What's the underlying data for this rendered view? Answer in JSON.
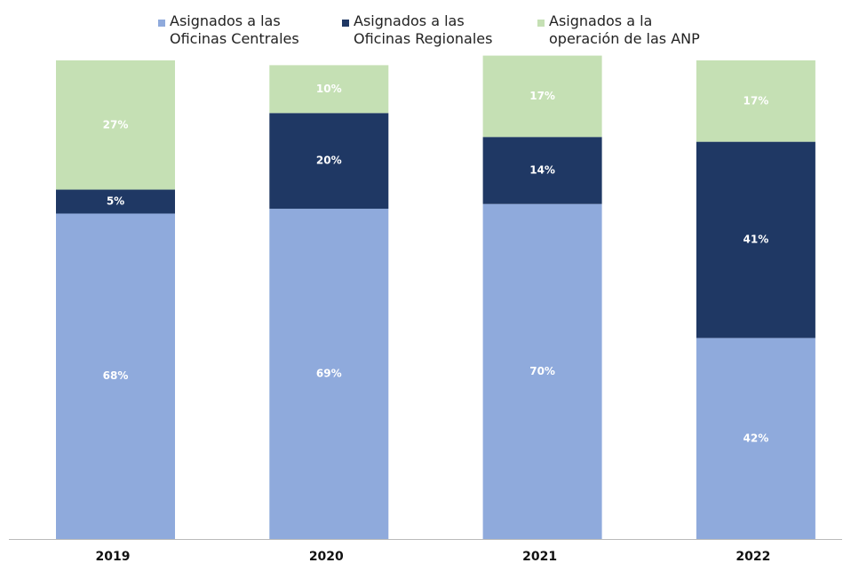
{
  "chart_data": {
    "type": "stacked_bar",
    "categories": [
      "2019",
      "2020",
      "2021",
      "2022"
    ],
    "ylim": [
      0,
      100
    ],
    "series": [
      {
        "name": "Asignados a las Oficinas Centrales",
        "color": "#8faadc",
        "values": [
          68,
          69,
          70,
          42
        ],
        "value_labels": [
          "68%",
          "69%",
          "70%",
          "42%"
        ]
      },
      {
        "name": "Asignados a las Oficinas Regionales",
        "color": "#1f3864",
        "values": [
          5,
          20,
          14,
          41
        ],
        "value_labels": [
          "5%",
          "20%",
          "14%",
          "41%"
        ]
      },
      {
        "name": "Asignados a la operación de las ANP",
        "color": "#c5e0b4",
        "values": [
          27,
          10,
          17,
          17
        ],
        "value_labels": [
          "27%",
          "10%",
          "17%",
          "17%"
        ]
      }
    ]
  }
}
